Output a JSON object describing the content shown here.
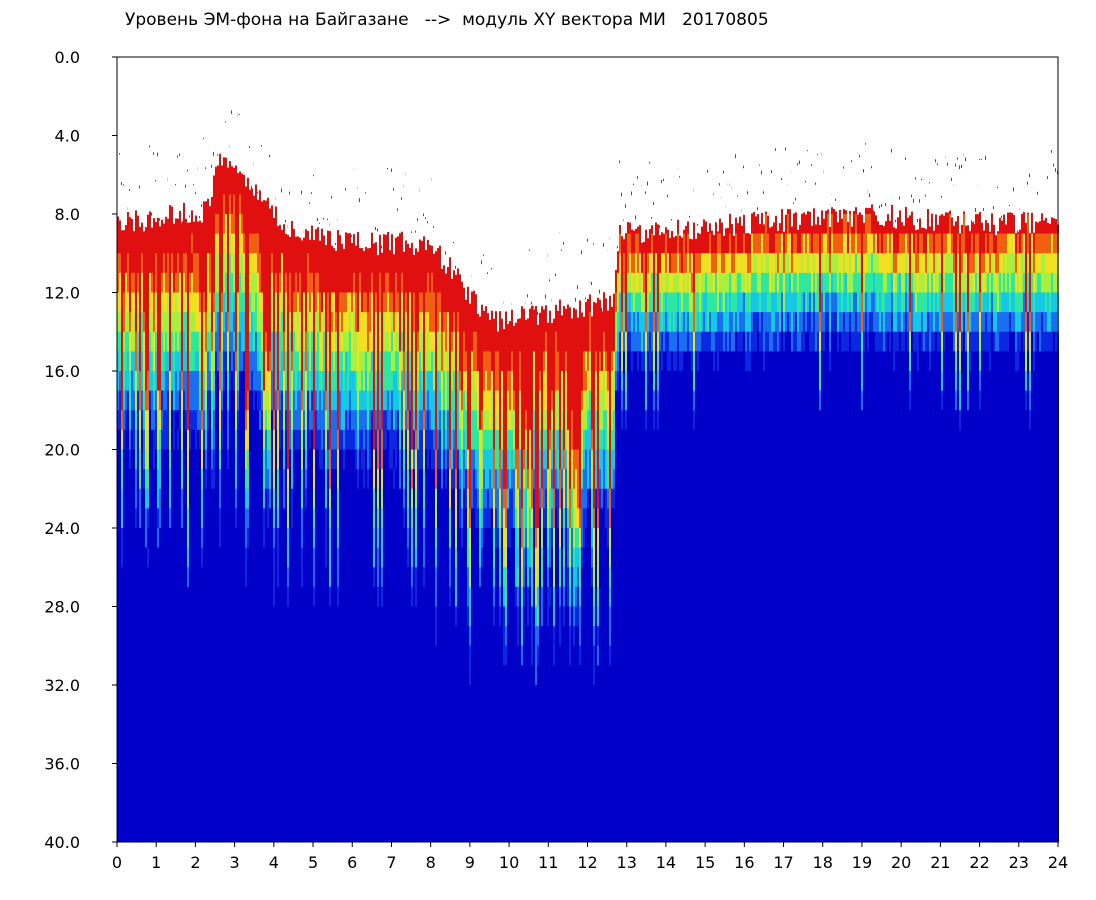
{
  "chart_data": {
    "type": "heatmap",
    "title": "Уровень ЭМ-фона на Байгазане   -->  модуль XY вектора МИ   20170805",
    "xlabel": "",
    "ylabel": "",
    "x_range": [
      0,
      24
    ],
    "y_range": [
      0,
      40
    ],
    "y_inverted": true,
    "x_ticks": [
      "0",
      "1",
      "2",
      "3",
      "4",
      "5",
      "6",
      "7",
      "8",
      "9",
      "10",
      "11",
      "12",
      "13",
      "14",
      "15",
      "16",
      "17",
      "18",
      "19",
      "20",
      "21",
      "22",
      "23",
      "24"
    ],
    "y_ticks": [
      "0.0",
      "4.0",
      "8.0",
      "12.0",
      "16.0",
      "20.0",
      "24.0",
      "28.0",
      "32.0",
      "36.0",
      "40.0"
    ],
    "grid": false,
    "colorscale": [
      "#0000c8",
      "#0a28e0",
      "#1a6ef0",
      "#16c8e8",
      "#2ee8a0",
      "#a8f040",
      "#f0e020",
      "#f06010",
      "#e01010"
    ],
    "description_upper_edge": [
      {
        "x": 0.0,
        "y": 8.5
      },
      {
        "x": 2.3,
        "y": 7.8
      },
      {
        "x": 2.6,
        "y": 5.0
      },
      {
        "x": 4.5,
        "y": 9.0
      },
      {
        "x": 6.0,
        "y": 9.5
      },
      {
        "x": 8.0,
        "y": 9.5
      },
      {
        "x": 9.5,
        "y": 13.5
      },
      {
        "x": 11.0,
        "y": 13.0
      },
      {
        "x": 12.6,
        "y": 12.5
      },
      {
        "x": 12.8,
        "y": 9.0
      },
      {
        "x": 16.0,
        "y": 8.5
      },
      {
        "x": 19.0,
        "y": 8.0
      },
      {
        "x": 22.0,
        "y": 8.5
      },
      {
        "x": 24.0,
        "y": 8.5
      }
    ]
  }
}
